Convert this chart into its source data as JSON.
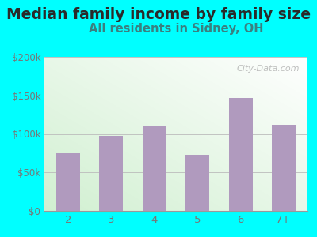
{
  "categories": [
    "2",
    "3",
    "4",
    "5",
    "6",
    "7+"
  ],
  "values": [
    75000,
    97000,
    110000,
    73000,
    147000,
    112000
  ],
  "bar_color": "#b09abe",
  "bg_color": "#00ffff",
  "title": "Median family income by family size",
  "subtitle": "All residents in Sidney, OH",
  "title_color": "#2a2a2a",
  "subtitle_color": "#3a8080",
  "tick_color": "#777777",
  "ylim": [
    0,
    200000
  ],
  "yticks": [
    0,
    50000,
    100000,
    150000,
    200000
  ],
  "ytick_labels": [
    "$0",
    "$50k",
    "$100k",
    "$150k",
    "$200k"
  ],
  "watermark": "City-Data.com",
  "title_fontsize": 13.5,
  "subtitle_fontsize": 10.5,
  "tick_fontsize": 8.5
}
